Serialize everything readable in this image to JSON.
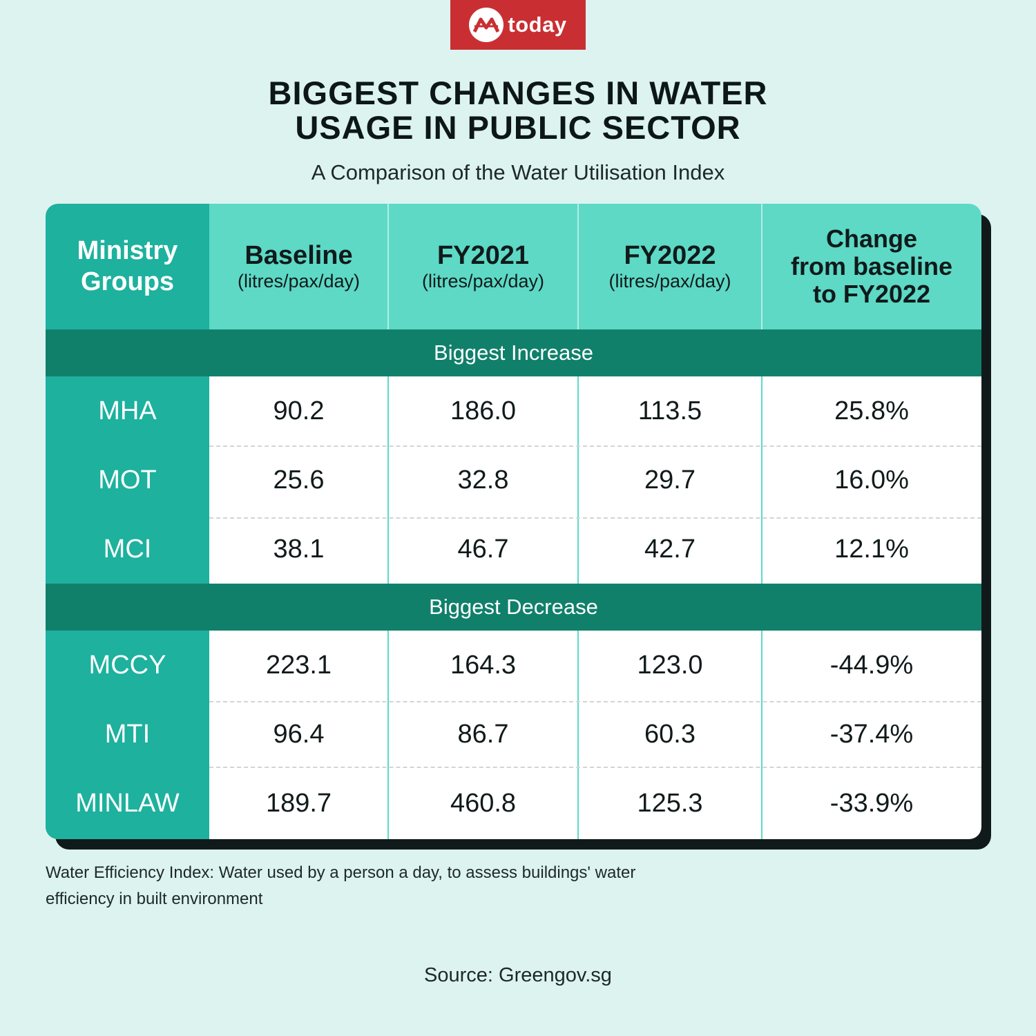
{
  "brand": {
    "name": "today",
    "color": "#c92f32"
  },
  "title_line1": "BIGGEST CHANGES IN WATER",
  "title_line2": "USAGE IN PUBLIC SECTOR",
  "subtitle": "A Comparison of the Water Utilisation Index",
  "footnote_line1": "Water Efficiency Index: Water used by a person a day, to assess buildings' water",
  "footnote_line2": "efficiency in built environment",
  "source": "Source:  Greengov.sg",
  "chart_data": {
    "type": "table",
    "title": "BIGGEST CHANGES IN WATER USAGE IN PUBLIC SECTOR",
    "subtitle": "A Comparison of the Water Utilisation Index",
    "columns": {
      "group": [
        "Ministry",
        "Groups"
      ],
      "baseline": {
        "label": "Baseline",
        "unit": "(litres/pax/day)"
      },
      "fy2021": {
        "label": "FY2021",
        "unit": "(litres/pax/day)"
      },
      "fy2022": {
        "label": "FY2022",
        "unit": "(litres/pax/day)"
      },
      "change": [
        "Change",
        "from baseline",
        "to FY2022"
      ]
    },
    "sections": [
      {
        "name": "Biggest Increase",
        "rows": [
          {
            "group": "MHA",
            "baseline": "90.2",
            "fy2021": "186.0",
            "fy2022": "113.5",
            "change": "25.8%"
          },
          {
            "group": "MOT",
            "baseline": "25.6",
            "fy2021": "32.8",
            "fy2022": "29.7",
            "change": "16.0%"
          },
          {
            "group": "MCI",
            "baseline": "38.1",
            "fy2021": "46.7",
            "fy2022": "42.7",
            "change": "12.1%"
          }
        ]
      },
      {
        "name": "Biggest Decrease",
        "rows": [
          {
            "group": "MCCY",
            "baseline": "223.1",
            "fy2021": "164.3",
            "fy2022": "123.0",
            "change": "-44.9%"
          },
          {
            "group": "MTI",
            "baseline": "96.4",
            "fy2021": "86.7",
            "fy2022": "60.3",
            "change": "-37.4%"
          },
          {
            "group": "MINLAW",
            "baseline": "189.7",
            "fy2021": "460.8",
            "fy2022": "125.3",
            "change": "-33.9%"
          }
        ]
      }
    ]
  }
}
